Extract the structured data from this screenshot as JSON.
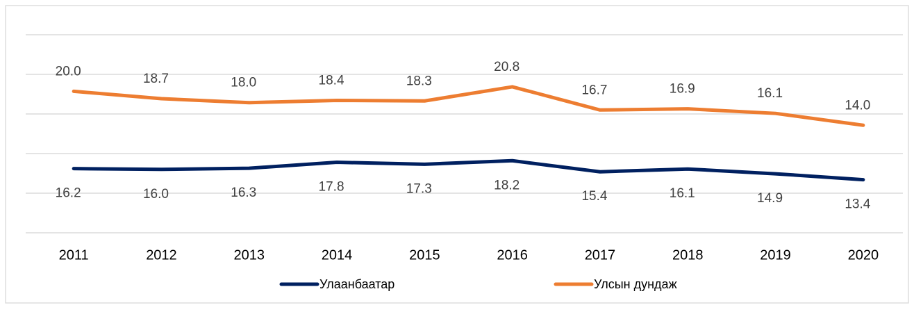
{
  "chart_data": {
    "type": "line",
    "categories": [
      "2011",
      "2012",
      "2013",
      "2014",
      "2015",
      "2016",
      "2017",
      "2018",
      "2019",
      "2020"
    ],
    "series": [
      {
        "name": "Улаанбаатар",
        "color": "#002060",
        "axis": "y2",
        "values": [
          16.2,
          16.0,
          16.3,
          17.8,
          17.3,
          18.2,
          15.4,
          16.1,
          14.9,
          13.4
        ],
        "value_labels": [
          "16.2",
          "16.0",
          "16.3",
          "17.8",
          "17.3",
          "18.2",
          "15.4",
          "16.1",
          "14.9",
          "13.4"
        ]
      },
      {
        "name": "Улсын дундаж",
        "color": "#ed7d31",
        "values": [
          20.0,
          18.7,
          18.0,
          18.4,
          18.3,
          20.8,
          16.7,
          16.9,
          16.1,
          14.0
        ],
        "value_labels": [
          "20.0",
          "18.7",
          "18.0",
          "18.4",
          "18.3",
          "20.8",
          "16.7",
          "16.9",
          "16.1",
          "14.0"
        ]
      }
    ],
    "ylim": [
      -5,
      30
    ],
    "yticks": [
      -5,
      2,
      9,
      16,
      23,
      30
    ],
    "y2lim": [
      0,
      50
    ],
    "y2ticks": [
      0,
      10,
      20,
      30,
      40,
      50
    ],
    "grid": true,
    "legend": "bottom"
  }
}
